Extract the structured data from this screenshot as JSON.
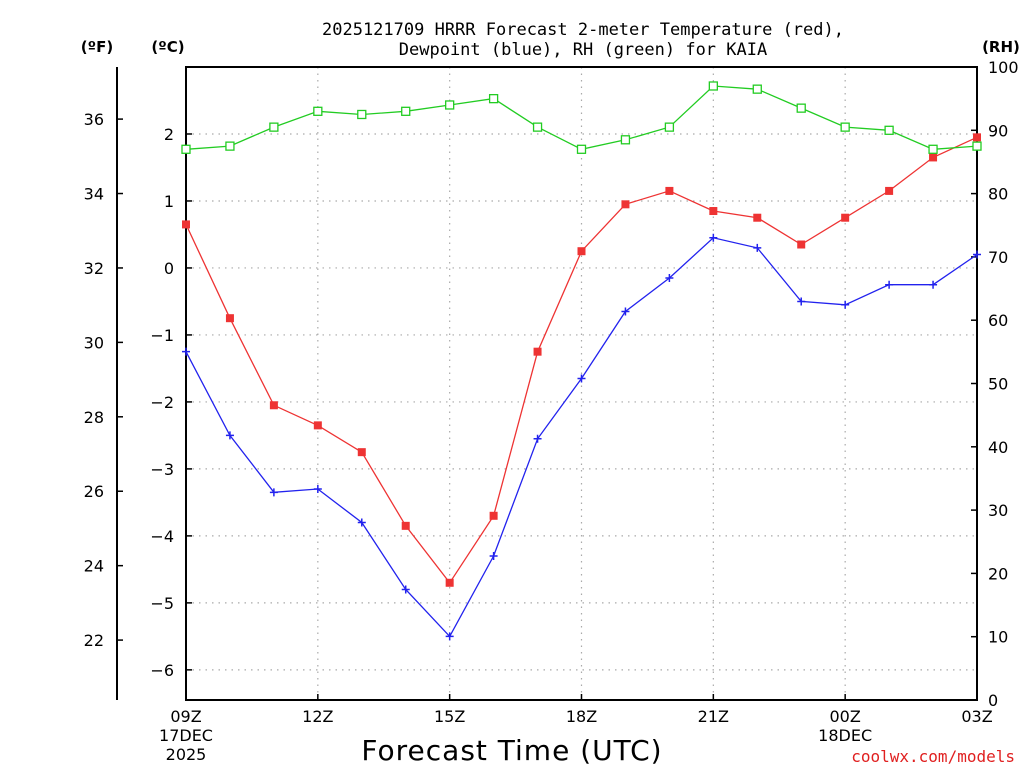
{
  "chart_data": {
    "type": "line",
    "title": "2025121709 HRRR Forecast 2-meter Temperature (red),",
    "subtitle": "Dewpoint (blue), RH (green) for KAIA",
    "xlabel": "Forecast Time (UTC)",
    "credit": "coolwx.com/models",
    "axis_units": {
      "fahrenheit": "(ºF)",
      "celsius": "(ºC)",
      "rh": "(RH)"
    },
    "x_hours": [
      0,
      1,
      2,
      3,
      4,
      5,
      6,
      7,
      8,
      9,
      10,
      11,
      12,
      13,
      14,
      15,
      16,
      17,
      18
    ],
    "x_ticks": [
      {
        "hour": 0,
        "label": "09Z",
        "line2": "17DEC",
        "line3": "2025"
      },
      {
        "hour": 3,
        "label": "12Z",
        "line2": "",
        "line3": ""
      },
      {
        "hour": 6,
        "label": "15Z",
        "line2": "",
        "line3": ""
      },
      {
        "hour": 9,
        "label": "18Z",
        "line2": "",
        "line3": ""
      },
      {
        "hour": 12,
        "label": "21Z",
        "line2": "",
        "line3": ""
      },
      {
        "hour": 15,
        "label": "00Z",
        "line2": "18DEC",
        "line3": ""
      },
      {
        "hour": 18,
        "label": "03Z",
        "line2": "",
        "line3": ""
      }
    ],
    "celsius_axis": {
      "ylim": [
        -6.45,
        3.0
      ],
      "ticks": [
        "−6",
        "−5",
        "−4",
        "−3",
        "−2",
        "−1",
        "0",
        "1",
        "2"
      ]
    },
    "fahrenheit_axis": {
      "ticks": [
        "22",
        "24",
        "26",
        "28",
        "30",
        "32",
        "34",
        "36"
      ]
    },
    "rh_axis": {
      "ylim": [
        0,
        100
      ],
      "ticks": [
        "0",
        "10",
        "20",
        "30",
        "40",
        "50",
        "60",
        "70",
        "80",
        "90",
        "100"
      ]
    },
    "series": [
      {
        "name": "Temperature (°C)",
        "color": "#ee3333",
        "marker": "filled-square",
        "axis": "celsius",
        "values": [
          0.65,
          -0.75,
          -2.05,
          -2.35,
          -2.75,
          -3.85,
          -4.7,
          -3.7,
          -1.25,
          0.25,
          0.95,
          1.15,
          0.85,
          0.75,
          0.35,
          0.75,
          1.15,
          1.65,
          1.95
        ]
      },
      {
        "name": "Dewpoint (°C)",
        "color": "#2222ee",
        "marker": "plus",
        "axis": "celsius",
        "values": [
          -1.25,
          -2.5,
          -3.35,
          -3.3,
          -3.8,
          -4.8,
          -5.5,
          -4.3,
          -2.55,
          -1.65,
          -0.65,
          -0.15,
          0.45,
          0.3,
          -0.5,
          -0.55,
          -0.25,
          -0.25,
          0.2
        ]
      },
      {
        "name": "RH (%)",
        "color": "#22cc22",
        "marker": "open-square",
        "axis": "rh",
        "values": [
          87,
          87.5,
          90.5,
          93,
          92.5,
          93,
          94,
          95,
          90.5,
          87,
          88.5,
          90.5,
          97,
          96.5,
          93.5,
          90.5,
          90,
          87,
          87.5
        ]
      }
    ]
  }
}
